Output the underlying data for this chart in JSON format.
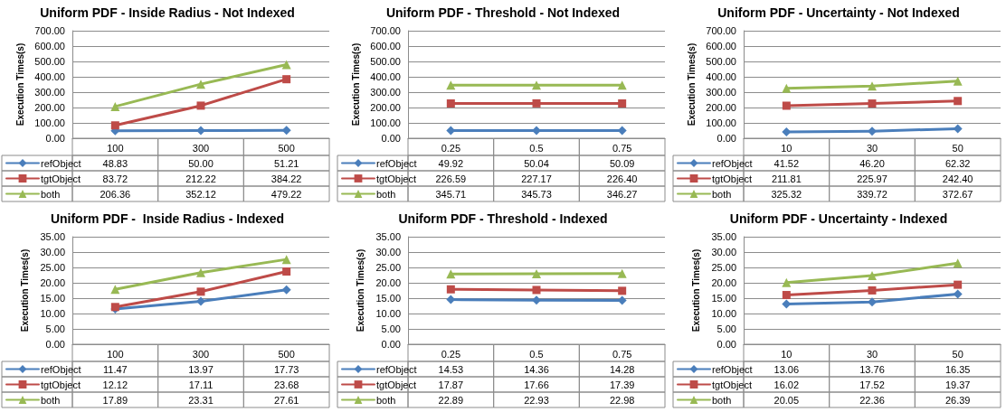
{
  "chart_data": [
    {
      "type": "line",
      "title": "Uniform PDF - Inside Radius - Not Indexed",
      "ylabel": "Execution Times(s)",
      "categories": [
        "100",
        "300",
        "500"
      ],
      "series": [
        {
          "name": "refObject",
          "color": "#4a7ebb",
          "marker": "diamond",
          "values": [
            48.83,
            50.0,
            51.21
          ],
          "value_labels": [
            "48.83",
            "50.00",
            "51.21"
          ]
        },
        {
          "name": "tgtObject",
          "color": "#be4b48",
          "marker": "square",
          "values": [
            83.72,
            212.22,
            384.22
          ],
          "value_labels": [
            "83.72",
            "212.22",
            "384.22"
          ]
        },
        {
          "name": "both",
          "color": "#98b954",
          "marker": "triangle",
          "values": [
            206.36,
            352.12,
            479.22
          ],
          "value_labels": [
            "206.36",
            "352.12",
            "479.22"
          ]
        }
      ],
      "ylim": [
        0,
        700
      ],
      "yticks": [
        {
          "value": 0,
          "label": "0.00"
        },
        {
          "value": 100,
          "label": "100.00"
        },
        {
          "value": 200,
          "label": "200.00"
        },
        {
          "value": 300,
          "label": "300.00"
        },
        {
          "value": 400,
          "label": "400.00"
        },
        {
          "value": 500,
          "label": "500.00"
        },
        {
          "value": 600,
          "label": "600.00"
        },
        {
          "value": 700,
          "label": "700.00"
        }
      ],
      "grid": "y",
      "legend": "bottom left"
    },
    {
      "type": "line",
      "title": "Uniform PDF - Threshold - Not Indexed",
      "ylabel": "Execution Times(s)",
      "categories": [
        "0.25",
        "0.5",
        "0.75"
      ],
      "series": [
        {
          "name": "refObject",
          "color": "#4a7ebb",
          "marker": "diamond",
          "values": [
            49.92,
            50.04,
            50.09
          ],
          "value_labels": [
            "49.92",
            "50.04",
            "50.09"
          ]
        },
        {
          "name": "tgtObject",
          "color": "#be4b48",
          "marker": "square",
          "values": [
            226.59,
            227.17,
            226.4
          ],
          "value_labels": [
            "226.59",
            "227.17",
            "226.40"
          ]
        },
        {
          "name": "both",
          "color": "#98b954",
          "marker": "triangle",
          "values": [
            345.71,
            345.73,
            346.27
          ],
          "value_labels": [
            "345.71",
            "345.73",
            "346.27"
          ]
        }
      ],
      "ylim": [
        0,
        700
      ],
      "yticks": [
        {
          "value": 0,
          "label": "0.00"
        },
        {
          "value": 100,
          "label": "100.00"
        },
        {
          "value": 200,
          "label": "200.00"
        },
        {
          "value": 300,
          "label": "300.00"
        },
        {
          "value": 400,
          "label": "400.00"
        },
        {
          "value": 500,
          "label": "500.00"
        },
        {
          "value": 600,
          "label": "600.00"
        },
        {
          "value": 700,
          "label": "700.00"
        }
      ],
      "grid": "y",
      "legend": "bottom left"
    },
    {
      "type": "line",
      "title": "Uniform PDF - Uncertainty - Not Indexed",
      "ylabel": "Execution Times(s)",
      "categories": [
        "10",
        "30",
        "50"
      ],
      "series": [
        {
          "name": "refObject",
          "color": "#4a7ebb",
          "marker": "diamond",
          "values": [
            41.52,
            46.2,
            62.32
          ],
          "value_labels": [
            "41.52",
            "46.20",
            "62.32"
          ]
        },
        {
          "name": "tgtObject",
          "color": "#be4b48",
          "marker": "square",
          "values": [
            211.81,
            225.97,
            242.4
          ],
          "value_labels": [
            "211.81",
            "225.97",
            "242.40"
          ]
        },
        {
          "name": "both",
          "color": "#98b954",
          "marker": "triangle",
          "values": [
            325.32,
            339.72,
            372.67
          ],
          "value_labels": [
            "325.32",
            "339.72",
            "372.67"
          ]
        }
      ],
      "ylim": [
        0,
        700
      ],
      "yticks": [
        {
          "value": 0,
          "label": "0.00"
        },
        {
          "value": 100,
          "label": "100.00"
        },
        {
          "value": 200,
          "label": "200.00"
        },
        {
          "value": 300,
          "label": "300.00"
        },
        {
          "value": 400,
          "label": "400.00"
        },
        {
          "value": 500,
          "label": "500.00"
        },
        {
          "value": 600,
          "label": "600.00"
        },
        {
          "value": 700,
          "label": "700.00"
        }
      ],
      "grid": "y",
      "legend": "bottom left"
    },
    {
      "type": "line",
      "title": "Uniform PDF -  Inside Radius - Indexed",
      "ylabel": "Execution Times(s)",
      "categories": [
        "100",
        "300",
        "500"
      ],
      "series": [
        {
          "name": "refObject",
          "color": "#4a7ebb",
          "marker": "diamond",
          "values": [
            11.47,
            13.97,
            17.73
          ],
          "value_labels": [
            "11.47",
            "13.97",
            "17.73"
          ]
        },
        {
          "name": "tgtObject",
          "color": "#be4b48",
          "marker": "square",
          "values": [
            12.12,
            17.11,
            23.68
          ],
          "value_labels": [
            "12.12",
            "17.11",
            "23.68"
          ]
        },
        {
          "name": "both",
          "color": "#98b954",
          "marker": "triangle",
          "values": [
            17.89,
            23.31,
            27.61
          ],
          "value_labels": [
            "17.89",
            "23.31",
            "27.61"
          ]
        }
      ],
      "ylim": [
        0,
        35
      ],
      "yticks": [
        {
          "value": 0,
          "label": "0.00"
        },
        {
          "value": 5,
          "label": "5.00"
        },
        {
          "value": 10,
          "label": "10.00"
        },
        {
          "value": 15,
          "label": "15.00"
        },
        {
          "value": 20,
          "label": "20.00"
        },
        {
          "value": 25,
          "label": "25.00"
        },
        {
          "value": 30,
          "label": "30.00"
        },
        {
          "value": 35,
          "label": "35.00"
        }
      ],
      "grid": "y",
      "legend": "bottom left"
    },
    {
      "type": "line",
      "title": "Uniform PDF - Threshold - Indexed",
      "ylabel": "Execution Times(s)",
      "categories": [
        "0.25",
        "0.5",
        "0.75"
      ],
      "series": [
        {
          "name": "refObject",
          "color": "#4a7ebb",
          "marker": "diamond",
          "values": [
            14.53,
            14.36,
            14.28
          ],
          "value_labels": [
            "14.53",
            "14.36",
            "14.28"
          ]
        },
        {
          "name": "tgtObject",
          "color": "#be4b48",
          "marker": "square",
          "values": [
            17.87,
            17.66,
            17.39
          ],
          "value_labels": [
            "17.87",
            "17.66",
            "17.39"
          ]
        },
        {
          "name": "both",
          "color": "#98b954",
          "marker": "triangle",
          "values": [
            22.89,
            22.93,
            22.98
          ],
          "value_labels": [
            "22.89",
            "22.93",
            "22.98"
          ]
        }
      ],
      "ylim": [
        0,
        35
      ],
      "yticks": [
        {
          "value": 0,
          "label": "0.00"
        },
        {
          "value": 5,
          "label": "5.00"
        },
        {
          "value": 10,
          "label": "10.00"
        },
        {
          "value": 15,
          "label": "15.00"
        },
        {
          "value": 20,
          "label": "20.00"
        },
        {
          "value": 25,
          "label": "25.00"
        },
        {
          "value": 30,
          "label": "30.00"
        },
        {
          "value": 35,
          "label": "35.00"
        }
      ],
      "grid": "y",
      "legend": "bottom left"
    },
    {
      "type": "line",
      "title": "Uniform PDF - Uncertainty - Indexed",
      "ylabel": "Execution Times(s)",
      "categories": [
        "10",
        "30",
        "50"
      ],
      "series": [
        {
          "name": "refObject",
          "color": "#4a7ebb",
          "marker": "diamond",
          "values": [
            13.06,
            13.76,
            16.35
          ],
          "value_labels": [
            "13.06",
            "13.76",
            "16.35"
          ]
        },
        {
          "name": "tgtObject",
          "color": "#be4b48",
          "marker": "square",
          "values": [
            16.02,
            17.52,
            19.37
          ],
          "value_labels": [
            "16.02",
            "17.52",
            "19.37"
          ]
        },
        {
          "name": "both",
          "color": "#98b954",
          "marker": "triangle",
          "values": [
            20.05,
            22.36,
            26.39
          ],
          "value_labels": [
            "20.05",
            "22.36",
            "26.39"
          ]
        }
      ],
      "ylim": [
        0,
        35
      ],
      "yticks": [
        {
          "value": 0,
          "label": "0.00"
        },
        {
          "value": 5,
          "label": "5.00"
        },
        {
          "value": 10,
          "label": "10.00"
        },
        {
          "value": 15,
          "label": "15.00"
        },
        {
          "value": 20,
          "label": "20.00"
        },
        {
          "value": 25,
          "label": "25.00"
        },
        {
          "value": 30,
          "label": "30.00"
        },
        {
          "value": 35,
          "label": "35.00"
        }
      ],
      "grid": "y",
      "legend": "bottom left"
    }
  ]
}
